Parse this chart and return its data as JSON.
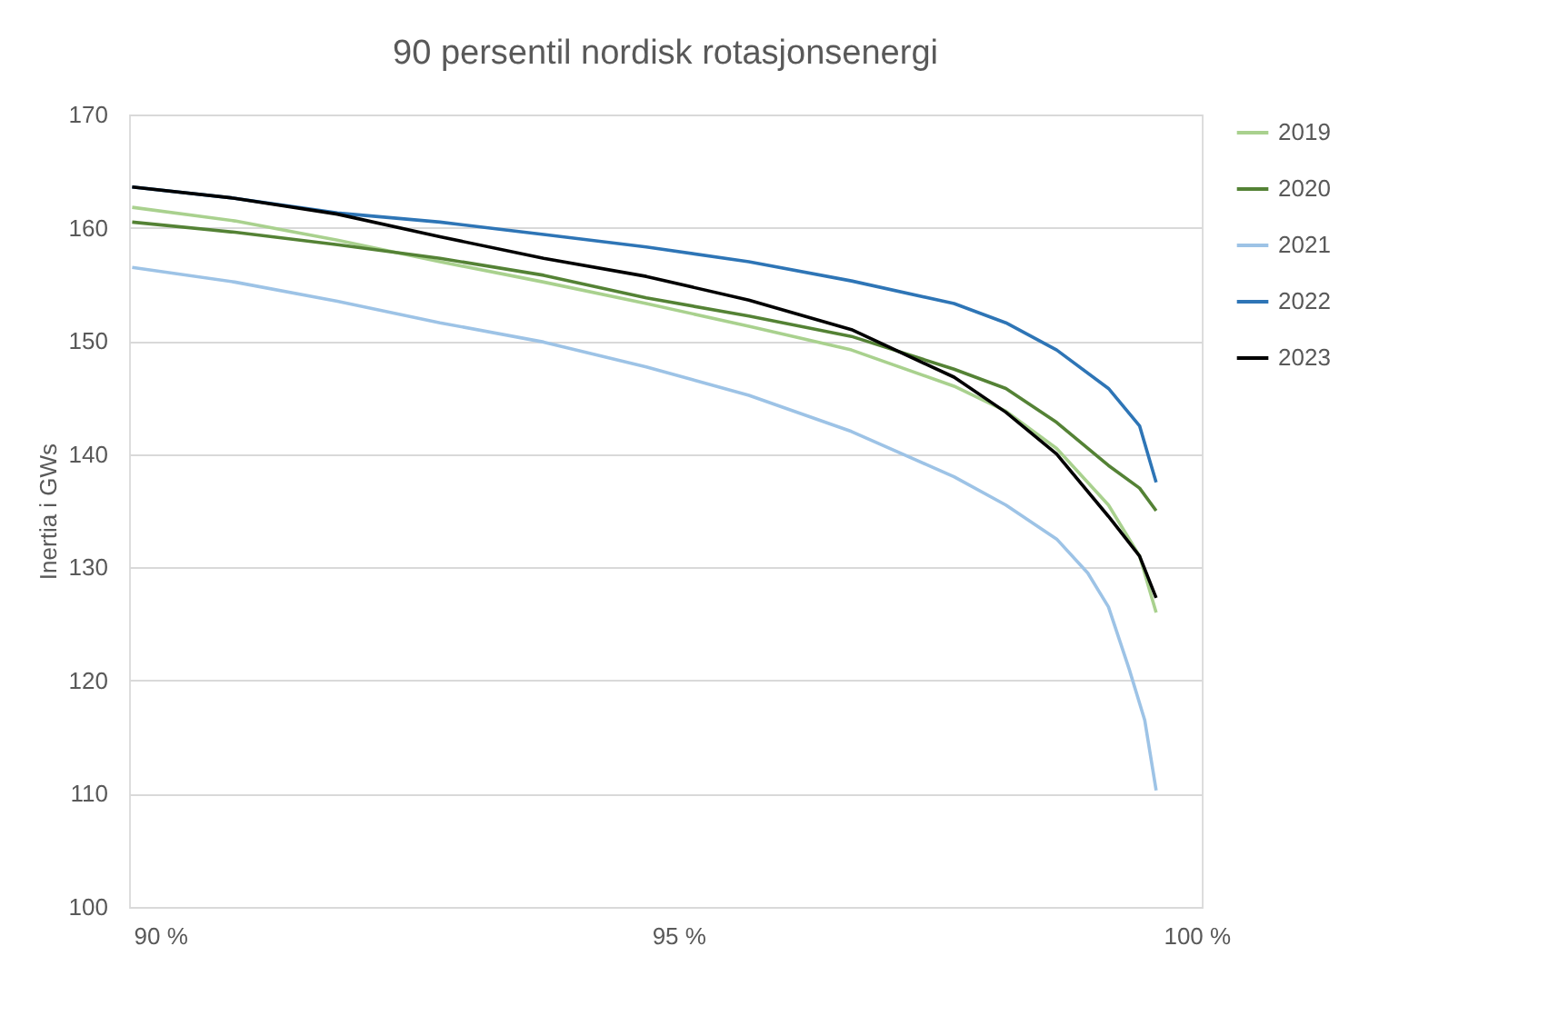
{
  "chart_data": {
    "type": "line",
    "title": "90 persentil nordisk rotasjonsenergi",
    "ylabel": "Inertia i GWs",
    "x": [
      89.73,
      90.72,
      91.71,
      92.7,
      93.7,
      94.69,
      95.68,
      96.67,
      97.66,
      98.16,
      98.65,
      99.15,
      99.45,
      99.61
    ],
    "series": [
      {
        "name": "2019",
        "color": "#a9d18e",
        "values": [
          161.8,
          160.6,
          158.9,
          157.0,
          155.2,
          153.3,
          151.3,
          149.2,
          146.0,
          143.8,
          140.5,
          135.5,
          131.0,
          126.0
        ]
      },
      {
        "name": "2020",
        "color": "#548235",
        "values": [
          160.5,
          159.6,
          158.5,
          157.3,
          155.8,
          153.8,
          152.2,
          150.4,
          147.5,
          145.8,
          142.8,
          139.0,
          137.0,
          135.0
        ]
      },
      {
        "name": "2021",
        "color": "#9dc3e6",
        "x": [
          89.73,
          90.72,
          91.71,
          92.7,
          93.7,
          94.69,
          95.68,
          96.67,
          97.66,
          98.16,
          98.65,
          98.95,
          99.15,
          99.35,
          99.5,
          99.61
        ],
        "values": [
          156.5,
          155.2,
          153.5,
          151.6,
          149.9,
          147.7,
          145.2,
          142.0,
          138.0,
          135.5,
          132.5,
          129.5,
          126.5,
          121.0,
          116.5,
          110.3
        ]
      },
      {
        "name": "2022",
        "color": "#2e75b6",
        "values": [
          163.6,
          162.6,
          161.3,
          160.5,
          159.4,
          158.3,
          157.0,
          155.3,
          153.3,
          151.6,
          149.2,
          145.8,
          142.5,
          137.5
        ]
      },
      {
        "name": "2023",
        "color": "#000000",
        "values": [
          163.6,
          162.6,
          161.2,
          159.2,
          157.3,
          155.7,
          153.6,
          151.0,
          146.8,
          143.7,
          140.0,
          134.5,
          131.0,
          127.3
        ]
      }
    ],
    "xlim": [
      89.7,
      100.05
    ],
    "xticks": [
      {
        "value": 90,
        "label": "90 %"
      },
      {
        "value": 95,
        "label": "95 %"
      },
      {
        "value": 100,
        "label": "100 %"
      }
    ],
    "ylim": [
      100,
      170
    ],
    "yticks": [
      100,
      110,
      120,
      130,
      140,
      150,
      160,
      170
    ],
    "grid": "y",
    "legend": "right",
    "marker": "none",
    "line_style": "solid"
  }
}
